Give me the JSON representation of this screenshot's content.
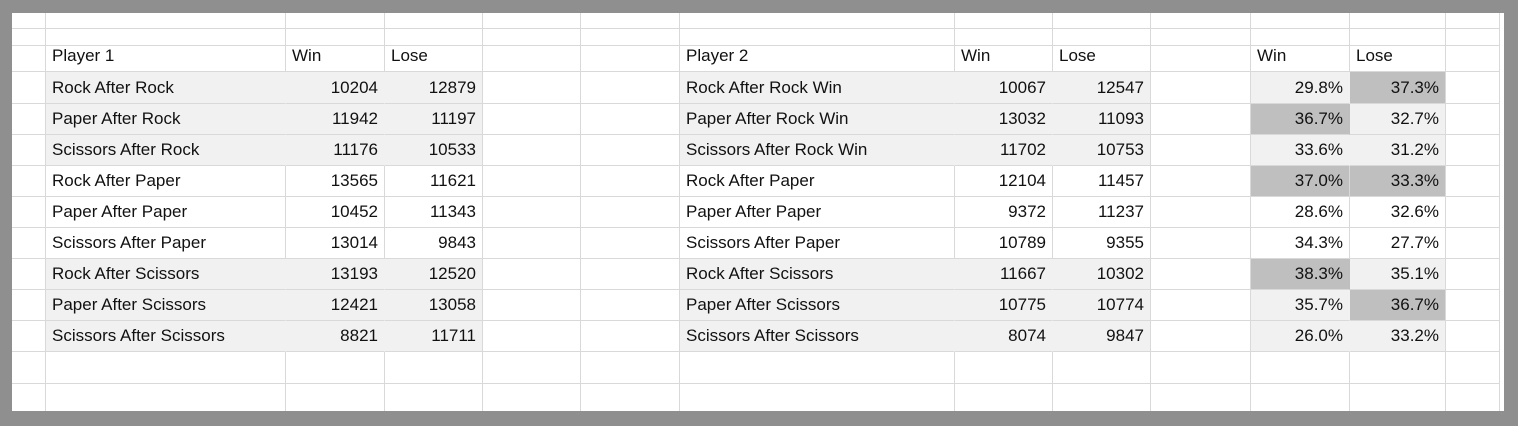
{
  "headers": {
    "p1": "Player 1",
    "p1_win": "Win",
    "p1_lose": "Lose",
    "p2": "Player 2",
    "p2_win": "Win",
    "p2_lose": "Lose",
    "pct_win": "Win",
    "pct_lose": "Lose"
  },
  "rows": [
    {
      "p1_label": "Rock After Rock",
      "p1_win": "10204",
      "p1_lose": "12879",
      "p2_label": "Rock After Rock Win",
      "p2_win": "10067",
      "p2_lose": "12547",
      "pct_win": "29.8%",
      "pct_lose": "37.3%"
    },
    {
      "p1_label": "Paper After Rock",
      "p1_win": "11942",
      "p1_lose": "11197",
      "p2_label": "Paper After Rock Win",
      "p2_win": "13032",
      "p2_lose": "11093",
      "pct_win": "36.7%",
      "pct_lose": "32.7%"
    },
    {
      "p1_label": "Scissors After Rock",
      "p1_win": "11176",
      "p1_lose": "10533",
      "p2_label": "Scissors After Rock Win",
      "p2_win": "11702",
      "p2_lose": "10753",
      "pct_win": "33.6%",
      "pct_lose": "31.2%"
    },
    {
      "p1_label": "Rock After Paper",
      "p1_win": "13565",
      "p1_lose": "11621",
      "p2_label": "Rock After Paper",
      "p2_win": "12104",
      "p2_lose": "11457",
      "pct_win": "37.0%",
      "pct_lose": "33.3%"
    },
    {
      "p1_label": "Paper After Paper",
      "p1_win": "10452",
      "p1_lose": "11343",
      "p2_label": "Paper After Paper",
      "p2_win": "9372",
      "p2_lose": "11237",
      "pct_win": "28.6%",
      "pct_lose": "32.6%"
    },
    {
      "p1_label": "Scissors After Paper",
      "p1_win": "13014",
      "p1_lose": "9843",
      "p2_label": "Scissors After Paper",
      "p2_win": "10789",
      "p2_lose": "9355",
      "pct_win": "34.3%",
      "pct_lose": "27.7%"
    },
    {
      "p1_label": "Rock After Scissors",
      "p1_win": "13193",
      "p1_lose": "12520",
      "p2_label": "Rock After Scissors",
      "p2_win": "11667",
      "p2_lose": "10302",
      "pct_win": "38.3%",
      "pct_lose": "35.1%"
    },
    {
      "p1_label": "Paper After Scissors",
      "p1_win": "12421",
      "p1_lose": "13058",
      "p2_label": "Paper After Scissors",
      "p2_win": "10775",
      "p2_lose": "10774",
      "pct_win": "35.7%",
      "pct_lose": "36.7%"
    },
    {
      "p1_label": "Scissors After Scissors",
      "p1_win": "8821",
      "p1_lose": "11711",
      "p2_label": "Scissors After Scissors",
      "p2_win": "8074",
      "p2_lose": "9847",
      "pct_win": "26.0%",
      "pct_lose": "33.2%"
    }
  ],
  "colors": {
    "band": "#f1f1f1",
    "highlight": "#bfbfbf",
    "gridline": "#d9d9d9",
    "frame": "#8f8f8f"
  }
}
